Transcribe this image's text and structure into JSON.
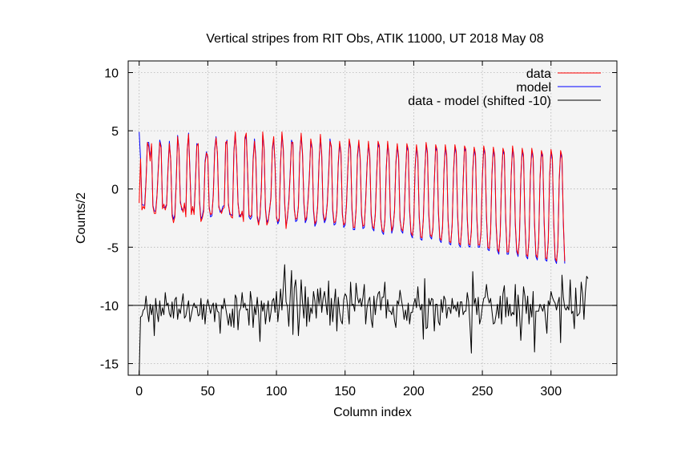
{
  "chart_data": {
    "type": "line",
    "title": "Vertical stripes from RIT Obs, ATIK 11000, UT 2018 May 08",
    "xlabel": "Column index",
    "ylabel": "Counts/2",
    "xlim": [
      -8,
      348
    ],
    "ylim": [
      -16,
      11
    ],
    "xticks": [
      0,
      50,
      100,
      150,
      200,
      250,
      300
    ],
    "yticks": [
      10,
      5,
      0,
      -5,
      -10,
      -15
    ],
    "grid": true,
    "legend_position": "top-right",
    "series": [
      {
        "name": "data",
        "color": "#ff0000",
        "x_start": 0,
        "x_step": 1,
        "values": [
          -1.2,
          2.6,
          -1.8,
          -1.5,
          -1.7,
          0.6,
          4,
          3.6,
          2.4,
          3.9,
          -1.5,
          -2.1,
          -2.1,
          -0.6,
          1.8,
          4,
          3.5,
          -1.7,
          -1.3,
          -1.8,
          -1.4,
          1.6,
          3.9,
          2.5,
          -2.3,
          -2.9,
          -2.4,
          0.5,
          4.5,
          3.3,
          -1.2,
          -1.6,
          -2,
          -1.2,
          -2.4,
          3.4,
          4.7,
          1.3,
          -2.2,
          -1.5,
          -2.2,
          0.5,
          3.7,
          3.9,
          -1.2,
          -2.8,
          -2.5,
          -1.9,
          2.2,
          3.1,
          2.8,
          -1.7,
          -2.2,
          -2.1,
          -0.6,
          3.2,
          4.4,
          3.1,
          -1.6,
          -1.8,
          -2.1,
          -1.7,
          -1.6,
          4,
          4.1,
          -1.4,
          -2,
          -2.4,
          -2.5,
          3.1,
          4.9,
          2.8,
          -1.3,
          -2.2,
          -2.4,
          -1.9,
          -2.8,
          4.4,
          4.8,
          1.6,
          -2.2,
          -2.4,
          -2.2,
          2.4,
          4.1,
          2.5,
          -2.5,
          -3.1,
          -2.3,
          -0.2,
          4.9,
          3.6,
          -1.8,
          -3.1,
          -2.8,
          -1.7,
          -0.8,
          3.5,
          4.5,
          1.9,
          -2.5,
          -2.8,
          -2.5,
          2.1,
          4.9,
          3.5,
          -1.1,
          -3.4,
          -2.3,
          -1.2,
          1.2,
          4,
          4,
          -1.8,
          -2.6,
          -2.5,
          -1.6,
          2.9,
          4.8,
          3.1,
          -1.1,
          -2.7,
          -2.4,
          -1.1,
          1,
          4.3,
          3.6,
          -1.7,
          -3,
          -2.7,
          -1.6,
          2.1,
          4.7,
          3,
          -2,
          -2.7,
          -2.4,
          -1.4,
          1.1,
          4.1,
          3.7,
          -1.7,
          -2.9,
          -2.8,
          -2,
          2.2,
          4.1,
          3.2,
          -2.2,
          -3.1,
          -2.9,
          -1.5,
          1.6,
          4.3,
          3.6,
          -1.6,
          -3.3,
          -3.3,
          -1.9,
          2.9,
          4.2,
          2.7,
          -2.1,
          -3.2,
          -3.1,
          -1.1,
          1.9,
          4.1,
          2.9,
          -2.1,
          -3.2,
          -3.4,
          -2.3,
          1.1,
          4.1,
          3.7,
          -2.6,
          -3.5,
          -3.7,
          -2.8,
          1.6,
          4.1,
          2.9,
          -2.2,
          -3.6,
          -3.1,
          -2,
          2.3,
          3.9,
          2.8,
          -2.7,
          -3.4,
          -3.6,
          -2.6,
          0.9,
          3.9,
          3.4,
          -1.7,
          -3.7,
          -4,
          -3.1,
          1.9,
          3.8,
          2.8,
          -2.3,
          -4.1,
          -4.2,
          -2.7,
          1.2,
          4,
          3.2,
          -2.1,
          -3.9,
          -4.1,
          -3.5,
          0.5,
          3.8,
          3.4,
          -1.9,
          -4.2,
          -4.4,
          -3.4,
          1.5,
          3.8,
          3,
          -2.7,
          -4.5,
          -4.6,
          -3.2,
          1.6,
          3.8,
          3.2,
          -2.2,
          -4.6,
          -4.8,
          -3.4,
          0.5,
          3.7,
          3.4,
          -2.4,
          -4.7,
          -4.8,
          -3.7,
          1.7,
          3.6,
          3,
          -2.4,
          -4.8,
          -4.8,
          -3.9,
          1.1,
          3.7,
          3.1,
          -2.3,
          -5,
          -5.1,
          -3.8,
          1.4,
          3.6,
          2.9,
          -2.9,
          -5.1,
          -5.4,
          -4,
          1.1,
          3.5,
          3.1,
          -2.5,
          -5.4,
          -5.4,
          -4,
          1.3,
          3.7,
          2.8,
          -2.9,
          -5.2,
          -5.6,
          -4.4,
          1,
          3.5,
          2.9,
          -2.6,
          -5.6,
          -5.8,
          -4.4,
          1.3,
          3.5,
          2.8,
          -2.9,
          -5.6,
          -5.9,
          -4.7,
          1,
          3.3,
          2.9,
          -2.7,
          -5.9,
          -6,
          -4.6,
          1.2,
          3.4,
          2.7,
          -2.9,
          -5.9,
          -6.2,
          -5,
          0.9,
          3.3,
          2.8,
          -2.8,
          -6.2
        ]
      },
      {
        "name": "model",
        "color": "#0000ff",
        "x_start": 0,
        "x_step": 1,
        "values": [
          4.9,
          2.6,
          -1.3,
          -1.4,
          -1.4,
          0.8,
          4,
          4,
          2.6,
          3.7,
          -1.4,
          -1.9,
          -1.9,
          -0.5,
          2,
          4.2,
          3.7,
          -1.5,
          -1.6,
          -1.6,
          -1.3,
          1.8,
          4.1,
          2.4,
          -2.1,
          -2.6,
          -2.2,
          0.7,
          4.6,
          3.4,
          -1,
          -1.8,
          -1.8,
          -1.4,
          -2.2,
          3.2,
          4.8,
          1.5,
          -2,
          -1.7,
          -2,
          0.7,
          3.9,
          3.8,
          -1,
          -2.6,
          -2.3,
          -1.7,
          2.4,
          3.2,
          2.6,
          -1.5,
          -2.4,
          -2.3,
          -0.4,
          3.4,
          4.5,
          3,
          -1.4,
          -2,
          -1.9,
          -1.5,
          -1.4,
          3.8,
          4.2,
          -1.2,
          -2.2,
          -2.2,
          -2.3,
          3.3,
          4.8,
          2.6,
          -1.1,
          -2.4,
          -2.2,
          -2.1,
          -2.6,
          4.2,
          4.6,
          1.4,
          -2.4,
          -2.6,
          -2.4,
          2.6,
          4.3,
          2.7,
          -2.3,
          -2.9,
          -2.5,
          0,
          4.7,
          3.4,
          -1.6,
          -2.9,
          -2.6,
          -1.9,
          -0.6,
          3.3,
          4.3,
          2.1,
          -2.3,
          -3,
          -2.7,
          2.3,
          4.7,
          3.3,
          -1.3,
          -3.2,
          -2.5,
          -1,
          1.4,
          4.2,
          3.8,
          -1.6,
          -2.8,
          -2.7,
          -1.4,
          3.1,
          4.6,
          2.9,
          -1.3,
          -2.9,
          -2.6,
          -0.9,
          1.2,
          4.1,
          3.4,
          -1.9,
          -3.2,
          -2.9,
          -1.4,
          2.3,
          4.5,
          2.8,
          -2.2,
          -2.9,
          -2.6,
          -1.2,
          1.3,
          4.3,
          3.5,
          -1.9,
          -3.1,
          -3,
          -1.8,
          2,
          3.9,
          3,
          -2,
          -3.3,
          -3.1,
          -1.3,
          1.8,
          4.1,
          3.4,
          -1.8,
          -3.5,
          -3.5,
          -1.7,
          2.7,
          4,
          2.5,
          -2.3,
          -3.4,
          -3.3,
          -0.9,
          2.1,
          3.9,
          2.7,
          -2.3,
          -3.4,
          -3.6,
          -2.1,
          1.3,
          3.9,
          3.5,
          -2.4,
          -3.7,
          -3.9,
          -2.6,
          1.8,
          3.9,
          2.7,
          -2.4,
          -3.8,
          -3.3,
          -1.8,
          2.1,
          3.7,
          2.6,
          -2.5,
          -3.6,
          -3.8,
          -2.4,
          1.1,
          3.7,
          3.2,
          -1.9,
          -3.9,
          -4.2,
          -2.9,
          1.7,
          3.6,
          2.6,
          -2.5,
          -4.3,
          -4.4,
          -2.5,
          1.4,
          3.8,
          3,
          -2.3,
          -4.1,
          -4.3,
          -3.3,
          0.7,
          3.6,
          3.2,
          -2.1,
          -4.4,
          -4.6,
          -3.2,
          1.3,
          3.6,
          2.8,
          -2.5,
          -4.7,
          -4.8,
          -3,
          1.4,
          3.6,
          3,
          -2.4,
          -4.8,
          -5,
          -3.2,
          0.7,
          3.5,
          3.2,
          -2.6,
          -4.9,
          -5,
          -3.5,
          1.5,
          3.4,
          2.8,
          -2.6,
          -5,
          -5,
          -3.7,
          0.9,
          3.5,
          2.9,
          -2.5,
          -5.2,
          -5.3,
          -3.6,
          1.2,
          3.4,
          2.7,
          -3.1,
          -5.3,
          -5.6,
          -3.8,
          0.9,
          3.3,
          2.9,
          -2.7,
          -5.6,
          -5.6,
          -3.8,
          1.1,
          3.5,
          2.6,
          -3.1,
          -5.4,
          -5.8,
          -4.2,
          0.8,
          3.3,
          2.7,
          -2.8,
          -5.8,
          -6,
          -4.2,
          1.1,
          3.3,
          2.6,
          -3.1,
          -5.8,
          -6.1,
          -4.5,
          0.8,
          3.1,
          2.7,
          -2.9,
          -6.1,
          -6.2,
          -4.4,
          1,
          3.2,
          2.5,
          -3.1,
          -6.1,
          -6.4,
          -4.8,
          0.7,
          3.1,
          2.6,
          -3,
          -6.4
        ]
      },
      {
        "name": "data - model (shifted -10)",
        "color": "#000000",
        "x_start": 0,
        "x_step": 1,
        "values": [
          -16,
          -11,
          -10.9,
          -10.4,
          -10.3,
          -9.2,
          -10.5,
          -11.4,
          -9.9,
          -10.8,
          -10,
          -12.6,
          -9.4,
          -10.6,
          -11.4,
          -9.6,
          -10.9,
          -10.2,
          -10.8,
          -8.9,
          -10,
          -9.8,
          -10.7,
          -11,
          -9.7,
          -11.1,
          -9.5,
          -9.3,
          -11.2,
          -10.3,
          -10.7,
          -9.8,
          -9,
          -11.1,
          -10.9,
          -10.2,
          -9.6,
          -11.4,
          -10.8,
          -10.2,
          -9.8,
          -10.2,
          -10.1,
          -10.9,
          -10.8,
          -9.4,
          -11.2,
          -9.9,
          -11.6,
          -10.1,
          -9.5,
          -10.1,
          -10.7,
          -10.1,
          -9.8,
          -11.4,
          -9.8,
          -10.5,
          -10.6,
          -12.4,
          -10,
          -10.3,
          -9.4,
          -10.2,
          -10.9,
          -11.7,
          -10.7,
          -11.8,
          -10.3,
          -11.9,
          -9.1,
          -9.4,
          -12.1,
          -10.5,
          -10.2,
          -8.9,
          -10.2,
          -9.8,
          -10.4,
          -10.3,
          -11.7,
          -8.8,
          -9.7,
          -11.9,
          -10.1,
          -10.8,
          -9.3,
          -10.7,
          -13.1,
          -9.6,
          -10.5,
          -9.8,
          -11.6,
          -10.5,
          -9.6,
          -11.4,
          -10.6,
          -9.6,
          -9.4,
          -10.6,
          -8.8,
          -11.4,
          -10.2,
          -8.6,
          -10.4,
          -8.5,
          -6.5,
          -9.7,
          -10.1,
          -11.8,
          -9.3,
          -7,
          -12.5,
          -8.5,
          -7.8,
          -9.7,
          -12.6,
          -10.5,
          -7.8,
          -9.8,
          -11.1,
          -8.4,
          -11.8,
          -9.3,
          -11.4,
          -10.2,
          -10.7,
          -8.8,
          -9.6,
          -11.1,
          -8.6,
          -9.9,
          -8.5,
          -10.6,
          -9.4,
          -8.8,
          -9.8,
          -10.8,
          -7.9,
          -11.7,
          -9.4,
          -11.4,
          -9.9,
          -8.6,
          -12.2,
          -9.3,
          -10.6,
          -11.3,
          -11.6,
          -9.5,
          -9,
          -9.2,
          -10.3,
          -11.6,
          -8,
          -10,
          -9.9,
          -10.5,
          -8.1,
          -9.3,
          -9.8,
          -9.4,
          -10.1,
          -9.3,
          -8.2,
          -11.6,
          -10.2,
          -9.6,
          -9.3,
          -11.2,
          -11.9,
          -9.2,
          -10.8,
          -9.6,
          -9,
          -8.8,
          -10.4,
          -9.3,
          -9.3,
          -8,
          -11.1,
          -9.5,
          -10.5,
          -10.5,
          -10.8,
          -10.1,
          -11.3,
          -11.9,
          -9.6,
          -9.9,
          -8.7,
          -9.5,
          -10.2,
          -11.2,
          -10.4,
          -11.3,
          -9.8,
          -11.6,
          -10.6,
          -10.6,
          -9.9,
          -9.4,
          -10.2,
          -8.4,
          -9.9,
          -10.4,
          -9.9,
          -12.9,
          -7.7,
          -12,
          -11.9,
          -9.4,
          -10,
          -9.4,
          -9.5,
          -12.2,
          -9.9,
          -9.9,
          -11.4,
          -11.7,
          -9.5,
          -10.6,
          -9.2,
          -9.5,
          -11.1,
          -10.2,
          -10.2,
          -10.7,
          -9.4,
          -10.3,
          -10,
          -10.5,
          -9.7,
          -11,
          -9.7,
          -9.7,
          -10.8,
          -10.5,
          -10.5,
          -8.9,
          -9.7,
          -11.8,
          -14.1,
          -7.1,
          -9.9,
          -9.4,
          -10.8,
          -9.3,
          -11.6,
          -11.1,
          -10.1,
          -9.4,
          -9.3,
          -8.2,
          -9.3,
          -9.8,
          -9.4,
          -10.5,
          -11.6,
          -11.5,
          -10.8,
          -9.9,
          -11.1,
          -9.2,
          -11.6,
          -9,
          -8.3,
          -11,
          -9.3,
          -10.9,
          -9.9,
          -10.9,
          -10.6,
          -10.8,
          -8.2,
          -11.8,
          -9.1,
          -10.5,
          -13,
          -10.9,
          -8.4,
          -9.2,
          -10.7,
          -9.2,
          -11.6,
          -9.9,
          -11,
          -8.8,
          -14,
          -10.5,
          -10.5,
          -10.5,
          -9.9,
          -10.2,
          -10.5,
          -9.9,
          -11.1,
          -12.4,
          -9.6,
          -10,
          -8.8,
          -9.3,
          -9.6,
          -9.8,
          -10.4,
          -9.8,
          -9.3,
          -13.2,
          -7.4,
          -9.3,
          -10.2,
          -10.4,
          -10.1,
          -10.4,
          -7.8,
          -10.7,
          -10.5,
          -12,
          -8.5,
          -10.9,
          -10.8,
          -10.6,
          -8,
          -9,
          -11.2,
          -8.9,
          -7.5,
          -7.7
        ]
      }
    ],
    "reference_lines": [
      {
        "axis": "y",
        "value": -10,
        "color": "#000000"
      }
    ]
  }
}
